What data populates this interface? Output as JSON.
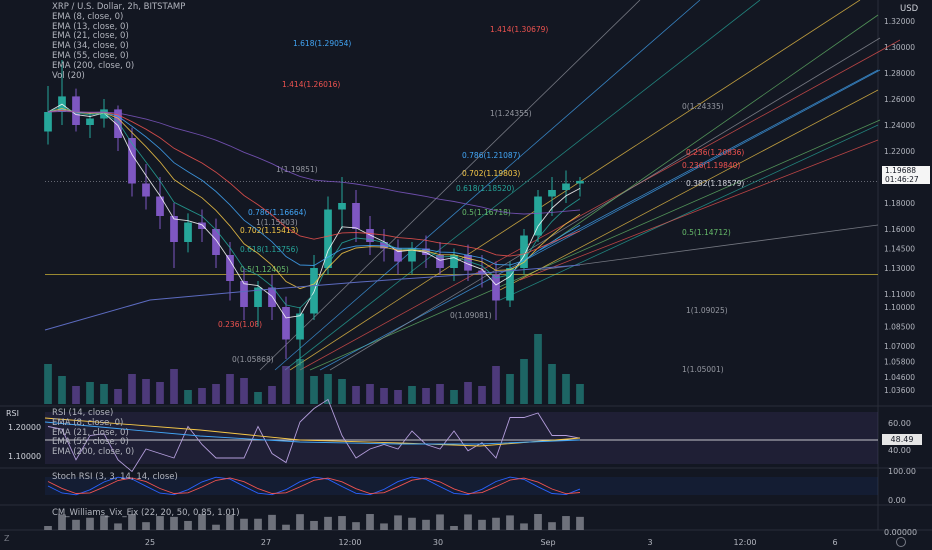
{
  "legend": {
    "title": "XRP / U.S. Dollar, 2h, BITSTAMP",
    "lines": [
      "EMA (8, close, 0)",
      "EMA (13, close, 0)",
      "EMA (21, close, 0)",
      "EMA (34, close, 0)",
      "EMA (55, close, 0)",
      "EMA (200, close, 0)",
      "Vol (20)"
    ],
    "currency": "USD",
    "collapse_icon": "chevron-up-icon"
  },
  "current_price": {
    "value": "1.19688",
    "countdown": "01:46:27"
  },
  "rsi_panel": {
    "badge": "RSI",
    "lines": [
      "RSI (14, close)",
      "EMA (8, close, 0)",
      "EMA (21, close, 0)",
      "EMA (55, close, 0)",
      "EMA (200, close, 0)"
    ],
    "left_ticks": [
      "1.20000",
      "1.10000"
    ],
    "right_ticks": [
      "60.00",
      "40.00"
    ],
    "current": "48.49"
  },
  "stoch_panel": {
    "label": "Stoch RSI (3, 3, 14, 14, close)",
    "right_ticks": [
      "100.00",
      "0.00"
    ]
  },
  "vix_panel": {
    "label": "CM_Williams_Vix_Fix (22, 20, 50, 0.85, 1.01)",
    "right_ticks": [
      "0.00000"
    ]
  },
  "timezone_icon": "Z",
  "settings_icon": "gear-icon",
  "chart_data": {
    "type": "candlestick",
    "symbol": "XRP / U.S. Dollar",
    "interval": "2h",
    "exchange": "BITSTAMP",
    "y_ticks": [
      "1.32000",
      "1.30000",
      "1.28000",
      "1.26000",
      "1.24000",
      "1.22000",
      "1.20000",
      "1.18000",
      "1.16000",
      "1.14500",
      "1.13000",
      "1.11000",
      "1.10000",
      "1.08500",
      "1.07000",
      "1.05800",
      "1.04600",
      "1.03600"
    ],
    "x_ticks": [
      "25",
      "27",
      "12:00",
      "30",
      "Sep",
      "3",
      "12:00",
      "6"
    ],
    "horizontal_levels": [
      1.125,
      1.1965
    ],
    "fib_labels": [
      {
        "text": "1.414(1.30679)",
        "color": "#ef5350"
      },
      {
        "text": "1.618(1.29054)",
        "color": "#42a5f5"
      },
      {
        "text": "1.414(1.26016)",
        "color": "#ef5350"
      },
      {
        "text": "1(1.24355)",
        "color": "#9598a1"
      },
      {
        "text": "0(1.24335)",
        "color": "#9598a1"
      },
      {
        "text": "0.236(1.20836)",
        "color": "#ef5350"
      },
      {
        "text": "0.786(1.21087)",
        "color": "#42a5f5"
      },
      {
        "text": "0.236(1.19840)",
        "color": "#ef5350"
      },
      {
        "text": "1(1.19851)",
        "color": "#9598a1"
      },
      {
        "text": "0.702(1.19803)",
        "color": "#f7c948"
      },
      {
        "text": "0.382(1.18579)",
        "color": "#d1d4dc"
      },
      {
        "text": "0.618(1.18520)",
        "color": "#26a69a"
      },
      {
        "text": "0.5(1.16718)",
        "color": "#66bb6a"
      },
      {
        "text": "0.786(1.16664)",
        "color": "#42a5f5"
      },
      {
        "text": "1(1.15903)",
        "color": "#9598a1"
      },
      {
        "text": "0.702(1.15413)",
        "color": "#f7c948"
      },
      {
        "text": "0.5(1.14712)",
        "color": "#66bb6a"
      },
      {
        "text": "0.618(1.13756)",
        "color": "#26a69a"
      },
      {
        "text": "0.5(1.12405)",
        "color": "#66bb6a"
      },
      {
        "text": "1(1.09025)",
        "color": "#9598a1"
      },
      {
        "text": "0(1.09081)",
        "color": "#9598a1"
      },
      {
        "text": "0.236(1.08)",
        "color": "#ef5350"
      },
      {
        "text": "0(1.05868)",
        "color": "#9598a1"
      },
      {
        "text": "1(1.05001)",
        "color": "#9598a1"
      }
    ],
    "candles_approx": [
      [
        1.235,
        1.27,
        1.225,
        1.25
      ],
      [
        1.25,
        1.29,
        1.24,
        1.262
      ],
      [
        1.262,
        1.268,
        1.235,
        1.24
      ],
      [
        1.24,
        1.25,
        1.23,
        1.245
      ],
      [
        1.245,
        1.26,
        1.238,
        1.252
      ],
      [
        1.252,
        1.255,
        1.22,
        1.23
      ],
      [
        1.23,
        1.238,
        1.185,
        1.195
      ],
      [
        1.195,
        1.21,
        1.175,
        1.185
      ],
      [
        1.185,
        1.2,
        1.16,
        1.17
      ],
      [
        1.17,
        1.18,
        1.13,
        1.15
      ],
      [
        1.15,
        1.172,
        1.142,
        1.165
      ],
      [
        1.165,
        1.175,
        1.15,
        1.16
      ],
      [
        1.16,
        1.168,
        1.13,
        1.14
      ],
      [
        1.14,
        1.15,
        1.105,
        1.12
      ],
      [
        1.12,
        1.13,
        1.09,
        1.1
      ],
      [
        1.1,
        1.12,
        1.085,
        1.115
      ],
      [
        1.115,
        1.125,
        1.09,
        1.1
      ],
      [
        1.1,
        1.108,
        1.06,
        1.075
      ],
      [
        1.075,
        1.1,
        1.055,
        1.095
      ],
      [
        1.095,
        1.14,
        1.09,
        1.13
      ],
      [
        1.13,
        1.185,
        1.125,
        1.175
      ],
      [
        1.175,
        1.2,
        1.16,
        1.18
      ],
      [
        1.18,
        1.19,
        1.15,
        1.16
      ],
      [
        1.16,
        1.17,
        1.14,
        1.15
      ],
      [
        1.15,
        1.16,
        1.135,
        1.145
      ],
      [
        1.145,
        1.152,
        1.125,
        1.135
      ],
      [
        1.135,
        1.15,
        1.125,
        1.145
      ],
      [
        1.145,
        1.155,
        1.13,
        1.14
      ],
      [
        1.14,
        1.15,
        1.125,
        1.13
      ],
      [
        1.13,
        1.145,
        1.12,
        1.14
      ],
      [
        1.14,
        1.148,
        1.12,
        1.128
      ],
      [
        1.128,
        1.14,
        1.115,
        1.125
      ],
      [
        1.125,
        1.135,
        1.09,
        1.105
      ],
      [
        1.105,
        1.135,
        1.1,
        1.13
      ],
      [
        1.13,
        1.16,
        1.125,
        1.155
      ],
      [
        1.155,
        1.19,
        1.15,
        1.185
      ],
      [
        1.185,
        1.2,
        1.17,
        1.19
      ],
      [
        1.19,
        1.205,
        1.18,
        1.195
      ],
      [
        1.195,
        1.2,
        1.185,
        1.197
      ]
    ]
  }
}
